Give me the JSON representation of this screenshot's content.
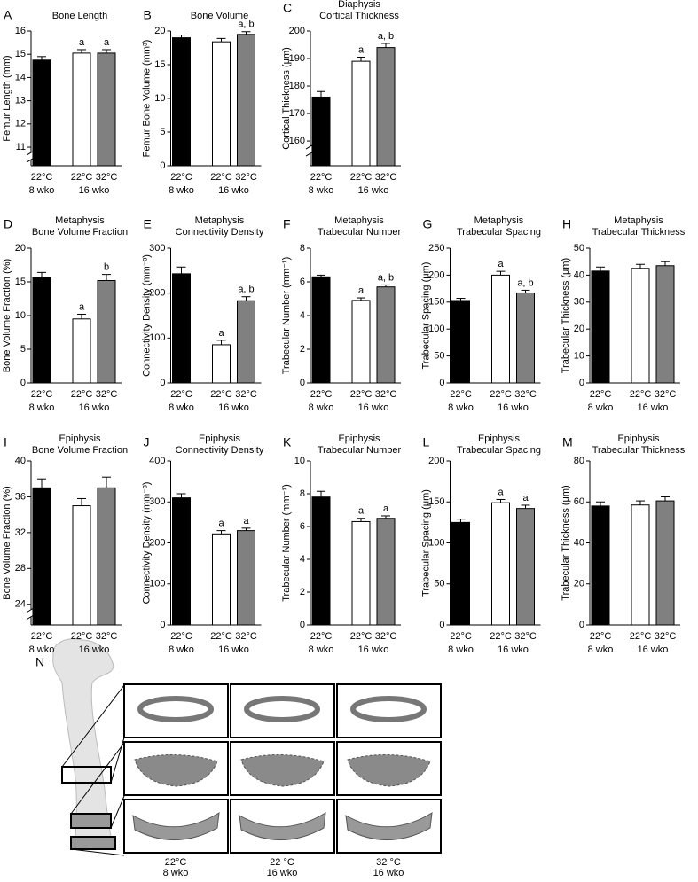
{
  "chart_data": [
    {
      "type": "bar",
      "panel": "A",
      "title": "Bone Length",
      "ylabel": "Femur Length (mm)",
      "categories": [
        "22°C",
        "22°C",
        "32°C"
      ],
      "group_labels": [
        "8 wko",
        "16 wko"
      ],
      "values": [
        14.75,
        15.05,
        15.05
      ],
      "errors": [
        0.15,
        0.15,
        0.15
      ],
      "annotations": [
        null,
        "a",
        "a"
      ],
      "colors": [
        "#000000",
        "#ffffff",
        "#808080"
      ],
      "ylim": [
        10.2,
        16
      ],
      "yticks": [
        11,
        12,
        13,
        14,
        15,
        16
      ],
      "axis_break": true
    },
    {
      "type": "bar",
      "panel": "B",
      "title": "Bone Volume",
      "ylabel": "Femur Bone Volume (mm³)",
      "categories": [
        "22°C",
        "22°C",
        "32°C"
      ],
      "group_labels": [
        "8 wko",
        "16 wko"
      ],
      "values": [
        19.0,
        18.4,
        19.5
      ],
      "errors": [
        0.4,
        0.5,
        0.4
      ],
      "annotations": [
        null,
        null,
        "a, b"
      ],
      "colors": [
        "#000000",
        "#ffffff",
        "#808080"
      ],
      "ylim": [
        0,
        20
      ],
      "yticks": [
        0,
        5,
        10,
        15,
        20
      ],
      "axis_break": false
    },
    {
      "type": "bar",
      "panel": "C",
      "title": "Diaphysis",
      "subtitle": "Cortical Thickness",
      "ylabel": "Cortical Thickness (μm)",
      "categories": [
        "22°C",
        "22°C",
        "32°C"
      ],
      "group_labels": [
        "8 wko",
        "16 wko"
      ],
      "values": [
        176,
        189,
        194
      ],
      "errors": [
        2,
        1.5,
        1.5
      ],
      "annotations": [
        null,
        "a",
        "a, b"
      ],
      "colors": [
        "#000000",
        "#ffffff",
        "#808080"
      ],
      "ylim": [
        151,
        200
      ],
      "yticks": [
        160,
        170,
        180,
        190,
        200
      ],
      "axis_break": true
    },
    {
      "type": "bar",
      "panel": "D",
      "title": "Metaphysis",
      "subtitle": "Bone Volume Fraction",
      "ylabel": "Bone Volume Fraction (%)",
      "categories": [
        "22°C",
        "22°C",
        "32°C"
      ],
      "group_labels": [
        "8 wko",
        "16 wko"
      ],
      "values": [
        15.6,
        9.5,
        15.2
      ],
      "errors": [
        0.8,
        0.7,
        0.9
      ],
      "annotations": [
        null,
        "a",
        "b"
      ],
      "colors": [
        "#000000",
        "#ffffff",
        "#808080"
      ],
      "ylim": [
        0,
        20
      ],
      "yticks": [
        0,
        5,
        10,
        15,
        20
      ],
      "axis_break": false
    },
    {
      "type": "bar",
      "panel": "E",
      "title": "Metaphysis",
      "subtitle": "Connectivity Density",
      "ylabel": "Connectivity Density (mm⁻³)",
      "categories": [
        "22°C",
        "22°C",
        "32°C"
      ],
      "group_labels": [
        "8 wko",
        "16 wko"
      ],
      "values": [
        243,
        85,
        183
      ],
      "errors": [
        15,
        10,
        9
      ],
      "annotations": [
        null,
        "a",
        "a, b"
      ],
      "colors": [
        "#000000",
        "#ffffff",
        "#808080"
      ],
      "ylim": [
        0,
        300
      ],
      "yticks": [
        0,
        100,
        200,
        300
      ],
      "axis_break": false
    },
    {
      "type": "bar",
      "panel": "F",
      "title": "Metaphysis",
      "subtitle": "Trabecular Number",
      "ylabel": "Trabecular Number (mm⁻¹)",
      "categories": [
        "22°C",
        "22°C",
        "32°C"
      ],
      "group_labels": [
        "8 wko",
        "16 wko"
      ],
      "values": [
        6.3,
        4.9,
        5.7
      ],
      "errors": [
        0.1,
        0.15,
        0.12
      ],
      "annotations": [
        null,
        "a",
        "a, b"
      ],
      "colors": [
        "#000000",
        "#ffffff",
        "#808080"
      ],
      "ylim": [
        0,
        8
      ],
      "yticks": [
        0,
        2,
        4,
        6,
        8
      ],
      "axis_break": false
    },
    {
      "type": "bar",
      "panel": "G",
      "title": "Metaphysis",
      "subtitle": "Trabecular Spacing",
      "ylabel": "Trabecular Spacing (μm)",
      "categories": [
        "22°C",
        "22°C",
        "32°C"
      ],
      "group_labels": [
        "8 wko",
        "16 wko"
      ],
      "values": [
        153,
        200,
        167
      ],
      "errors": [
        4,
        7,
        5
      ],
      "annotations": [
        null,
        "a",
        "a, b"
      ],
      "colors": [
        "#000000",
        "#ffffff",
        "#808080"
      ],
      "ylim": [
        0,
        250
      ],
      "yticks": [
        0,
        50,
        100,
        150,
        200,
        250
      ],
      "axis_break": false
    },
    {
      "type": "bar",
      "panel": "H",
      "title": "Metaphysis",
      "subtitle": "Trabecular Thickness",
      "ylabel": "Trabecular Thickness (μm)",
      "categories": [
        "22°C",
        "22°C",
        "32°C"
      ],
      "group_labels": [
        "8 wko",
        "16 wko"
      ],
      "values": [
        41.5,
        42.5,
        43.5
      ],
      "errors": [
        1.5,
        1.5,
        1.5
      ],
      "annotations": [
        null,
        null,
        null
      ],
      "colors": [
        "#000000",
        "#ffffff",
        "#808080"
      ],
      "ylim": [
        0,
        50
      ],
      "yticks": [
        0,
        10,
        20,
        30,
        40,
        50
      ],
      "axis_break": false
    },
    {
      "type": "bar",
      "panel": "I",
      "title": "Epiphysis",
      "subtitle": "Bone Volume Fraction",
      "ylabel": "Bone Volume Fraction (%)",
      "categories": [
        "22°C",
        "22°C",
        "32°C"
      ],
      "group_labels": [
        "8 wko",
        "16 wko"
      ],
      "values": [
        37,
        35,
        37
      ],
      "errors": [
        1,
        0.8,
        1.2
      ],
      "annotations": [
        null,
        null,
        null
      ],
      "colors": [
        "#000000",
        "#ffffff",
        "#808080"
      ],
      "ylim": [
        21.7,
        40
      ],
      "yticks": [
        24,
        28,
        32,
        36,
        40
      ],
      "axis_break": true
    },
    {
      "type": "bar",
      "panel": "J",
      "title": "Epiphysis",
      "subtitle": "Connectivity Density",
      "ylabel": "Connectivity Density (mm⁻³)",
      "categories": [
        "22°C",
        "22°C",
        "32°C"
      ],
      "group_labels": [
        "8 wko",
        "16 wko"
      ],
      "values": [
        310,
        222,
        230
      ],
      "errors": [
        10,
        8,
        6
      ],
      "annotations": [
        null,
        "a",
        "a"
      ],
      "colors": [
        "#000000",
        "#ffffff",
        "#808080"
      ],
      "ylim": [
        0,
        400
      ],
      "yticks": [
        0,
        100,
        200,
        300,
        400
      ],
      "axis_break": false
    },
    {
      "type": "bar",
      "panel": "K",
      "title": "Epiphysis",
      "subtitle": "Trabecular Number",
      "ylabel": "Trabecular Number (mm⁻¹)",
      "categories": [
        "22°C",
        "22°C",
        "32°C"
      ],
      "group_labels": [
        "8 wko",
        "16 wko"
      ],
      "values": [
        7.8,
        6.3,
        6.5
      ],
      "errors": [
        0.35,
        0.2,
        0.15
      ],
      "annotations": [
        null,
        "a",
        "a"
      ],
      "colors": [
        "#000000",
        "#ffffff",
        "#808080"
      ],
      "ylim": [
        0,
        10
      ],
      "yticks": [
        0,
        2,
        4,
        6,
        8,
        10
      ],
      "axis_break": false
    },
    {
      "type": "bar",
      "panel": "L",
      "title": "Epiphysis",
      "subtitle": "Trabecular Spacing",
      "ylabel": "Trabecular Spacing (μm)",
      "categories": [
        "22°C",
        "22°C",
        "32°C"
      ],
      "group_labels": [
        "8 wko",
        "16 wko"
      ],
      "values": [
        125,
        149,
        142
      ],
      "errors": [
        4,
        4,
        4
      ],
      "annotations": [
        null,
        "a",
        "a"
      ],
      "colors": [
        "#000000",
        "#ffffff",
        "#808080"
      ],
      "ylim": [
        0,
        200
      ],
      "yticks": [
        0,
        50,
        100,
        150,
        200
      ],
      "axis_break": false
    },
    {
      "type": "bar",
      "panel": "M",
      "title": "Epiphysis",
      "subtitle": "Trabecular Thickness",
      "ylabel": "Trabecular Thickness (μm)",
      "categories": [
        "22°C",
        "22°C",
        "32°C"
      ],
      "group_labels": [
        "8 wko",
        "16 wko"
      ],
      "values": [
        58,
        58.5,
        60.5
      ],
      "errors": [
        2,
        2,
        2
      ],
      "annotations": [
        null,
        null,
        null
      ],
      "colors": [
        "#000000",
        "#ffffff",
        "#808080"
      ],
      "ylim": [
        0,
        80
      ],
      "yticks": [
        0,
        20,
        40,
        60,
        80
      ],
      "axis_break": false
    }
  ],
  "image_panel": {
    "panel": "N",
    "captions": [
      {
        "temp": "22°C",
        "age": "8 wko"
      },
      {
        "temp": "22 °C",
        "age": "16 wko"
      },
      {
        "temp": "32 °C",
        "age": "16 wko"
      }
    ]
  }
}
